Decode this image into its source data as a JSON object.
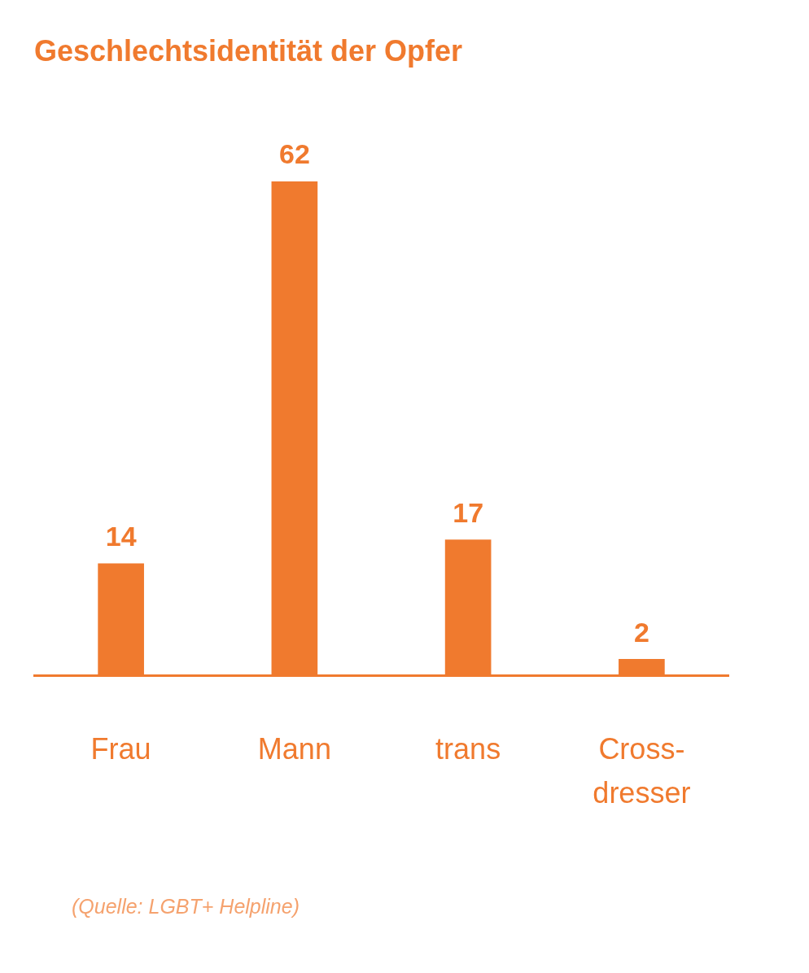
{
  "chart_data": {
    "type": "bar",
    "title": "Geschlechtsidentität der Opfer",
    "categories": [
      "Frau",
      "Mann",
      "trans",
      "Cross-dresser"
    ],
    "values": [
      14,
      62,
      17,
      2
    ],
    "color": "#f07a2e",
    "tick_labels": "x",
    "data_labels": true,
    "grid": false,
    "legend": false,
    "annotations": [
      "(Quelle: LGBT+ Helpline)"
    ]
  }
}
